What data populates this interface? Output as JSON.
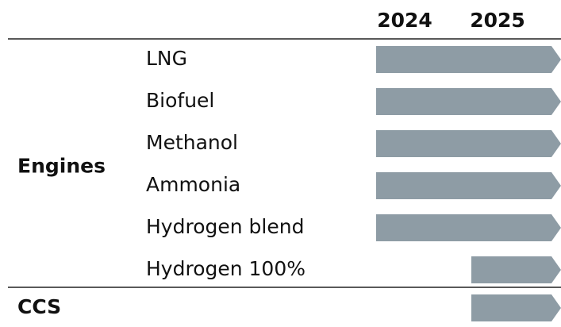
{
  "columns": [
    "2024",
    "2025"
  ],
  "groups": [
    {
      "label": "Engines",
      "items": [
        {
          "label": "LNG",
          "start": "2024"
        },
        {
          "label": "Biofuel",
          "start": "2024"
        },
        {
          "label": "Methanol",
          "start": "2024"
        },
        {
          "label": "Ammonia",
          "start": "2024"
        },
        {
          "label": "Hydrogen blend",
          "start": "2024"
        },
        {
          "label": "Hydrogen 100%",
          "start": "2025"
        }
      ]
    },
    {
      "label": "CCS",
      "start": "2025"
    }
  ]
}
